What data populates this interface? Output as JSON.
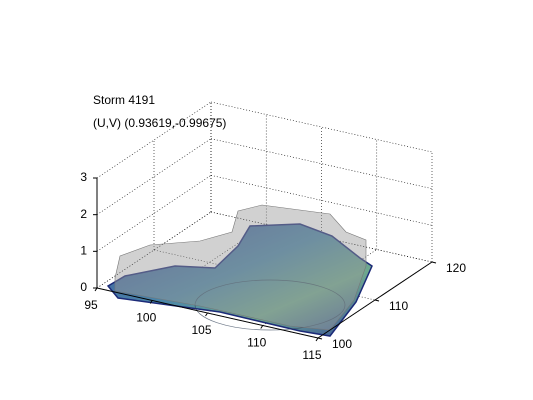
{
  "chart_data": {
    "type": "surface3d",
    "title": "Storm 4191",
    "subtitle": "(U,V) (0.93619,-0.99675)",
    "xlim": [
      95,
      115
    ],
    "xticks": [
      95,
      100,
      105,
      110,
      115
    ],
    "ylim": [
      100,
      120
    ],
    "yticks": [
      100,
      110,
      120
    ],
    "zlim": [
      0,
      3
    ],
    "zticks": [
      0,
      1,
      2,
      3
    ],
    "grid": true
  }
}
